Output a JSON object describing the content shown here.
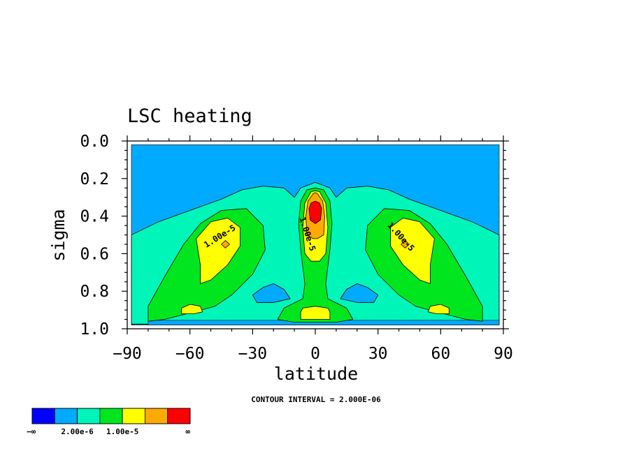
{
  "chart_data": {
    "type": "contour",
    "title": "LSC heating",
    "xlabel": "latitude",
    "ylabel": "sigma",
    "xlim": [
      -90,
      90
    ],
    "ylim": [
      1.0,
      0.0
    ],
    "x_ticks": [
      -90,
      -60,
      -30,
      0,
      30,
      60,
      90
    ],
    "x_tick_labels": [
      "−90",
      "−60",
      "−30",
      "0",
      "30",
      "60",
      "90"
    ],
    "y_ticks": [
      0.0,
      0.2,
      0.4,
      0.6,
      0.8,
      1.0
    ],
    "y_tick_labels": [
      "0.0",
      "0.2",
      "0.4",
      "0.6",
      "0.8",
      "1.0"
    ],
    "contour_interval_note": "CONTOUR INTERVAL = 2.000E-06",
    "contour_labels": [
      {
        "text": "1.00e-5",
        "lat": -45,
        "sigma": 0.52,
        "angle": -32
      },
      {
        "text": "1.00e-5",
        "lat": -5,
        "sigma": 0.5,
        "angle": 72
      },
      {
        "text": "1.00e-5",
        "lat": 40,
        "sigma": 0.52,
        "angle": 48
      }
    ],
    "regions": [
      {
        "level": 1,
        "sigma_top": 0.02,
        "sigma_bot": 0.98,
        "lat_min": -88,
        "lat_max": 88
      },
      {
        "level": 2,
        "points": [
          [
            -88,
            0.5
          ],
          [
            -75,
            0.43
          ],
          [
            -60,
            0.37
          ],
          [
            -45,
            0.31
          ],
          [
            -35,
            0.26
          ],
          [
            -25,
            0.24
          ],
          [
            -15,
            0.25
          ],
          [
            -10,
            0.3
          ],
          [
            -7,
            0.25
          ],
          [
            0,
            0.22
          ],
          [
            7,
            0.25
          ],
          [
            10,
            0.3
          ],
          [
            15,
            0.25
          ],
          [
            25,
            0.24
          ],
          [
            35,
            0.26
          ],
          [
            45,
            0.31
          ],
          [
            60,
            0.37
          ],
          [
            75,
            0.43
          ],
          [
            88,
            0.5
          ],
          [
            88,
            0.975
          ],
          [
            -88,
            0.975
          ]
        ]
      },
      {
        "level": 1,
        "points": [
          [
            -30,
            0.82
          ],
          [
            -25,
            0.78
          ],
          [
            -20,
            0.76
          ],
          [
            -15,
            0.79
          ],
          [
            -12,
            0.84
          ],
          [
            -20,
            0.86
          ],
          [
            -28,
            0.86
          ]
        ]
      },
      {
        "level": 1,
        "points": [
          [
            12,
            0.84
          ],
          [
            15,
            0.79
          ],
          [
            20,
            0.76
          ],
          [
            25,
            0.78
          ],
          [
            30,
            0.82
          ],
          [
            28,
            0.86
          ],
          [
            20,
            0.86
          ]
        ]
      },
      {
        "level": 1,
        "sigma_top": 0.955,
        "sigma_bot": 0.98,
        "lat_min": -80,
        "lat_max": 88
      },
      {
        "level": 3,
        "points": [
          [
            -80,
            0.88
          ],
          [
            -72,
            0.72
          ],
          [
            -63,
            0.55
          ],
          [
            -55,
            0.44
          ],
          [
            -45,
            0.37
          ],
          [
            -33,
            0.36
          ],
          [
            -25,
            0.45
          ],
          [
            -24,
            0.58
          ],
          [
            -30,
            0.71
          ],
          [
            -40,
            0.82
          ],
          [
            -48,
            0.88
          ],
          [
            -58,
            0.91
          ],
          [
            -72,
            0.95
          ],
          [
            -80,
            0.96
          ]
        ]
      },
      {
        "level": 3,
        "points": [
          [
            80,
            0.88
          ],
          [
            72,
            0.72
          ],
          [
            63,
            0.55
          ],
          [
            55,
            0.44
          ],
          [
            45,
            0.37
          ],
          [
            33,
            0.36
          ],
          [
            25,
            0.45
          ],
          [
            24,
            0.58
          ],
          [
            30,
            0.71
          ],
          [
            40,
            0.82
          ],
          [
            48,
            0.88
          ],
          [
            58,
            0.91
          ],
          [
            72,
            0.95
          ],
          [
            80,
            0.96
          ]
        ]
      },
      {
        "level": 3,
        "points": [
          [
            -7,
            0.58
          ],
          [
            -8,
            0.44
          ],
          [
            -7,
            0.32
          ],
          [
            -4,
            0.26
          ],
          [
            0,
            0.25
          ],
          [
            4,
            0.26
          ],
          [
            7,
            0.32
          ],
          [
            8,
            0.44
          ],
          [
            7,
            0.58
          ],
          [
            5,
            0.76
          ],
          [
            6,
            0.84
          ],
          [
            15,
            0.89
          ],
          [
            18,
            0.95
          ],
          [
            10,
            0.965
          ],
          [
            -10,
            0.965
          ],
          [
            -18,
            0.95
          ],
          [
            -15,
            0.89
          ],
          [
            -6,
            0.84
          ],
          [
            -5,
            0.76
          ]
        ]
      },
      {
        "level": 4,
        "points": [
          [
            -55,
            0.66
          ],
          [
            -57,
            0.52
          ],
          [
            -50,
            0.43
          ],
          [
            -42,
            0.41
          ],
          [
            -36,
            0.46
          ],
          [
            -36,
            0.56
          ],
          [
            -42,
            0.66
          ],
          [
            -50,
            0.74
          ],
          [
            -55,
            0.76
          ]
        ]
      },
      {
        "level": 4,
        "points": [
          [
            55,
            0.66
          ],
          [
            57,
            0.52
          ],
          [
            50,
            0.43
          ],
          [
            42,
            0.41
          ],
          [
            36,
            0.46
          ],
          [
            36,
            0.56
          ],
          [
            42,
            0.66
          ],
          [
            50,
            0.74
          ],
          [
            55,
            0.76
          ]
        ]
      },
      {
        "level": 4,
        "points": [
          [
            -64,
            0.89
          ],
          [
            -60,
            0.87
          ],
          [
            -55,
            0.88
          ],
          [
            -54,
            0.91
          ],
          [
            -58,
            0.92
          ],
          [
            -64,
            0.92
          ]
        ]
      },
      {
        "level": 4,
        "points": [
          [
            64,
            0.89
          ],
          [
            60,
            0.87
          ],
          [
            55,
            0.88
          ],
          [
            54,
            0.91
          ],
          [
            58,
            0.92
          ],
          [
            64,
            0.92
          ]
        ]
      },
      {
        "level": 4,
        "points": [
          [
            -7,
            0.91
          ],
          [
            -6,
            0.89
          ],
          [
            0,
            0.88
          ],
          [
            6,
            0.89
          ],
          [
            7,
            0.91
          ],
          [
            7,
            0.95
          ],
          [
            -7,
            0.95
          ]
        ]
      },
      {
        "level": 4,
        "points": [
          [
            -5,
            0.6
          ],
          [
            -6,
            0.46
          ],
          [
            -5,
            0.33
          ],
          [
            -2,
            0.27
          ],
          [
            0,
            0.265
          ],
          [
            2,
            0.27
          ],
          [
            5,
            0.33
          ],
          [
            6,
            0.46
          ],
          [
            5,
            0.6
          ],
          [
            2,
            0.64
          ],
          [
            -2,
            0.64
          ]
        ]
      },
      {
        "level": 5,
        "points": [
          [
            -45,
            0.55
          ],
          [
            -43,
            0.53
          ],
          [
            -41,
            0.55
          ],
          [
            -43,
            0.57
          ]
        ]
      },
      {
        "level": 5,
        "points": [
          [
            45,
            0.55
          ],
          [
            43,
            0.53
          ],
          [
            41,
            0.55
          ],
          [
            43,
            0.57
          ]
        ]
      },
      {
        "level": 5,
        "points": [
          [
            -4,
            0.5
          ],
          [
            -4.5,
            0.4
          ],
          [
            -3.5,
            0.32
          ],
          [
            -1,
            0.28
          ],
          [
            0,
            0.275
          ],
          [
            1,
            0.28
          ],
          [
            3.5,
            0.32
          ],
          [
            4.5,
            0.4
          ],
          [
            4,
            0.5
          ],
          [
            1,
            0.52
          ],
          [
            -1,
            0.52
          ]
        ]
      },
      {
        "level": 6,
        "points": [
          [
            -2.5,
            0.42
          ],
          [
            -3,
            0.36
          ],
          [
            -2,
            0.33
          ],
          [
            0,
            0.32
          ],
          [
            2,
            0.33
          ],
          [
            3,
            0.36
          ],
          [
            2.5,
            0.42
          ],
          [
            0,
            0.44
          ]
        ]
      }
    ],
    "colorbar": {
      "colors": [
        "#0000ff",
        "#00aaff",
        "#00f5b8",
        "#00e61e",
        "#ffff00",
        "#ffaa00",
        "#ff0000"
      ],
      "labels": [
        "−∞",
        "2.00e-6",
        "1.00e-5",
        "∞"
      ]
    }
  }
}
